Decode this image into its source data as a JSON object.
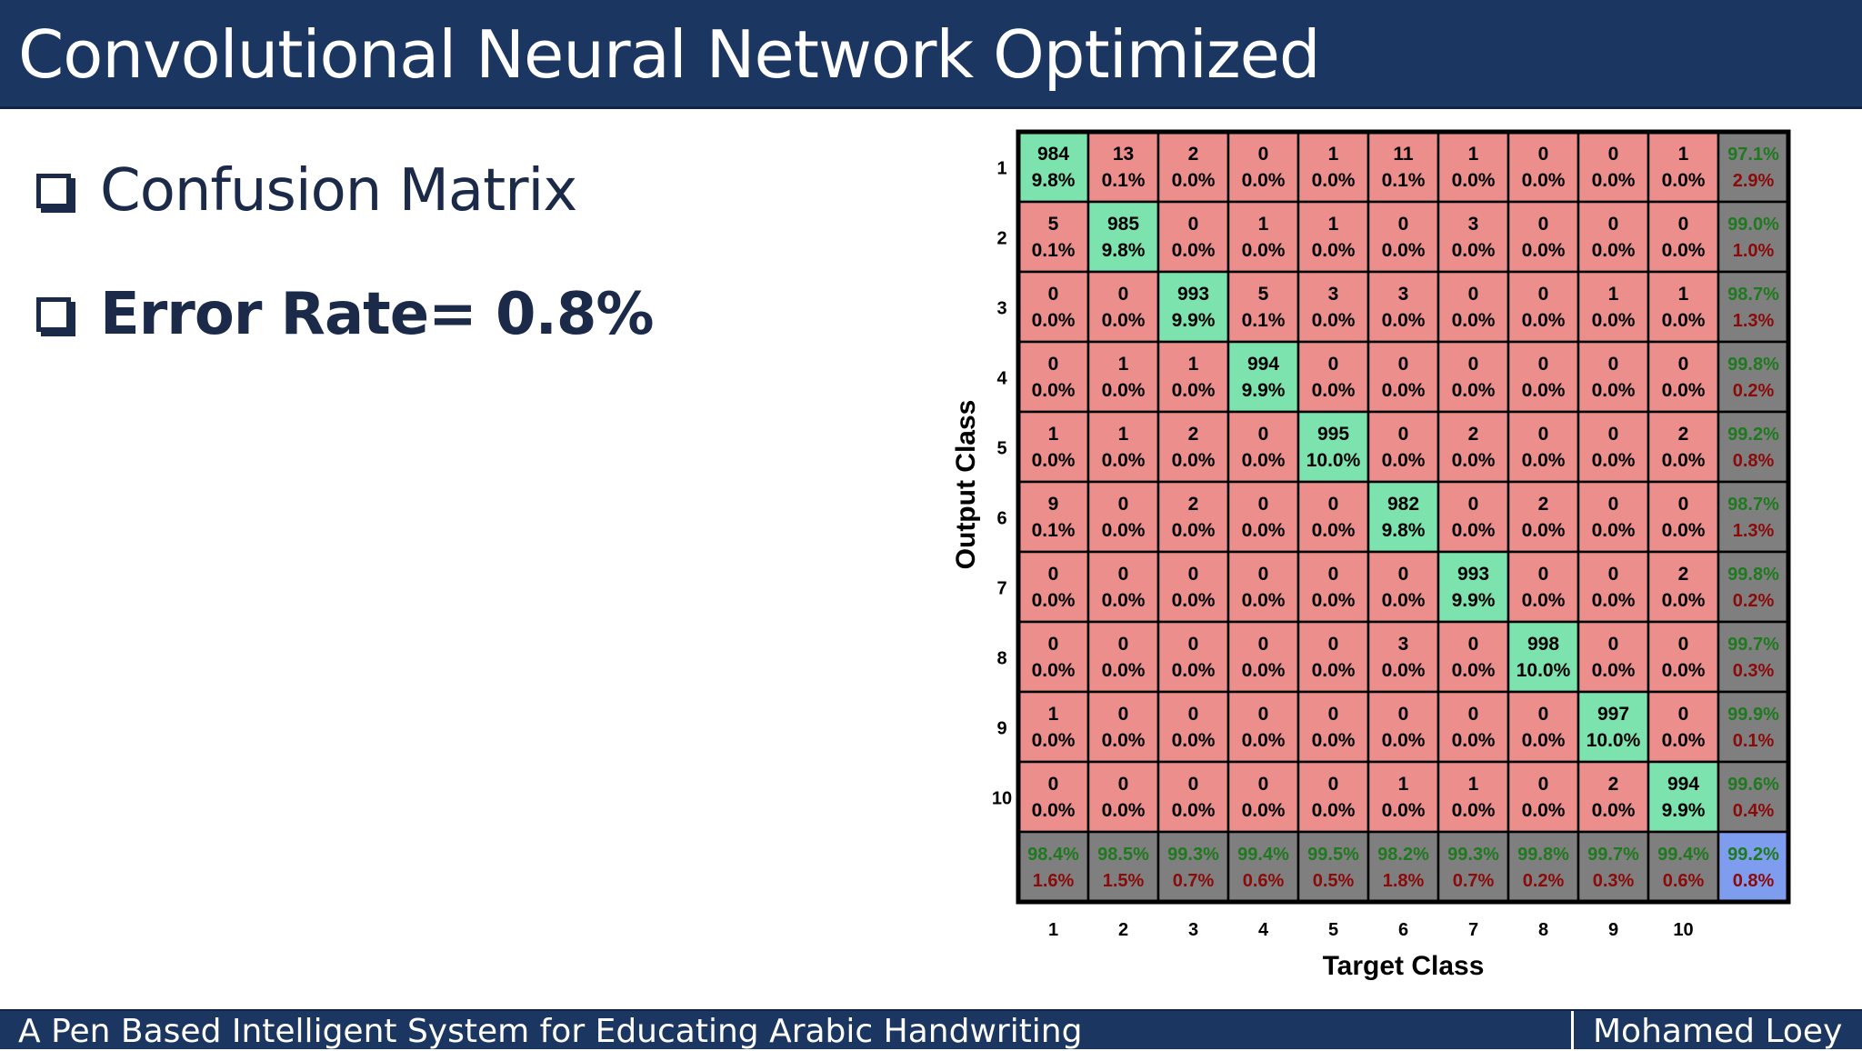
{
  "header": {
    "title": "Convolutional Neural Network Optimized"
  },
  "bullets": [
    {
      "text": "Confusion Matrix"
    },
    {
      "text": "Error Rate= 0.8%"
    }
  ],
  "footer": {
    "left": "A Pen Based Intelligent System for Educating Arabic Handwriting",
    "right": "Mohamed Loey"
  },
  "colors": {
    "header_bg": "#1b3660",
    "correct_cell": "#7de3ae",
    "wrong_cell": "#ec8f8c",
    "summary_cell": "#7f7f7f",
    "overall_cell": "#7f9dee",
    "accuracy_text": "#1f7a1f",
    "error_text": "#8b0a0a"
  },
  "chart_data": {
    "type": "heatmap",
    "xlabel": "Target Class",
    "ylabel": "Output Class",
    "x_tick_labels": [
      "1",
      "2",
      "3",
      "4",
      "5",
      "6",
      "7",
      "8",
      "9",
      "10"
    ],
    "y_tick_labels": [
      "1",
      "2",
      "3",
      "4",
      "5",
      "6",
      "7",
      "8",
      "9",
      "10"
    ],
    "counts": [
      [
        984,
        13,
        2,
        0,
        1,
        11,
        1,
        0,
        0,
        1
      ],
      [
        5,
        985,
        0,
        1,
        1,
        0,
        3,
        0,
        0,
        0
      ],
      [
        0,
        0,
        993,
        5,
        3,
        3,
        0,
        0,
        1,
        1
      ],
      [
        0,
        1,
        1,
        994,
        0,
        0,
        0,
        0,
        0,
        0
      ],
      [
        1,
        1,
        2,
        0,
        995,
        0,
        2,
        0,
        0,
        2
      ],
      [
        9,
        0,
        2,
        0,
        0,
        982,
        0,
        2,
        0,
        0
      ],
      [
        0,
        0,
        0,
        0,
        0,
        0,
        993,
        0,
        0,
        2
      ],
      [
        0,
        0,
        0,
        0,
        0,
        3,
        0,
        998,
        0,
        0
      ],
      [
        1,
        0,
        0,
        0,
        0,
        0,
        0,
        0,
        997,
        0
      ],
      [
        0,
        0,
        0,
        0,
        0,
        1,
        1,
        0,
        2,
        994
      ]
    ],
    "percents": [
      [
        "9.8%",
        "0.1%",
        "0.0%",
        "0.0%",
        "0.0%",
        "0.1%",
        "0.0%",
        "0.0%",
        "0.0%",
        "0.0%"
      ],
      [
        "0.1%",
        "9.8%",
        "0.0%",
        "0.0%",
        "0.0%",
        "0.0%",
        "0.0%",
        "0.0%",
        "0.0%",
        "0.0%"
      ],
      [
        "0.0%",
        "0.0%",
        "9.9%",
        "0.1%",
        "0.0%",
        "0.0%",
        "0.0%",
        "0.0%",
        "0.0%",
        "0.0%"
      ],
      [
        "0.0%",
        "0.0%",
        "0.0%",
        "9.9%",
        "0.0%",
        "0.0%",
        "0.0%",
        "0.0%",
        "0.0%",
        "0.0%"
      ],
      [
        "0.0%",
        "0.0%",
        "0.0%",
        "0.0%",
        "10.0%",
        "0.0%",
        "0.0%",
        "0.0%",
        "0.0%",
        "0.0%"
      ],
      [
        "0.1%",
        "0.0%",
        "0.0%",
        "0.0%",
        "0.0%",
        "9.8%",
        "0.0%",
        "0.0%",
        "0.0%",
        "0.0%"
      ],
      [
        "0.0%",
        "0.0%",
        "0.0%",
        "0.0%",
        "0.0%",
        "0.0%",
        "9.9%",
        "0.0%",
        "0.0%",
        "0.0%"
      ],
      [
        "0.0%",
        "0.0%",
        "0.0%",
        "0.0%",
        "0.0%",
        "0.0%",
        "0.0%",
        "10.0%",
        "0.0%",
        "0.0%"
      ],
      [
        "0.0%",
        "0.0%",
        "0.0%",
        "0.0%",
        "0.0%",
        "0.0%",
        "0.0%",
        "0.0%",
        "10.0%",
        "0.0%"
      ],
      [
        "0.0%",
        "0.0%",
        "0.0%",
        "0.0%",
        "0.0%",
        "0.0%",
        "0.0%",
        "0.0%",
        "0.0%",
        "9.9%"
      ]
    ],
    "row_summary": [
      [
        "97.1%",
        "2.9%"
      ],
      [
        "99.0%",
        "1.0%"
      ],
      [
        "98.7%",
        "1.3%"
      ],
      [
        "99.8%",
        "0.2%"
      ],
      [
        "99.2%",
        "0.8%"
      ],
      [
        "98.7%",
        "1.3%"
      ],
      [
        "99.8%",
        "0.2%"
      ],
      [
        "99.7%",
        "0.3%"
      ],
      [
        "99.9%",
        "0.1%"
      ],
      [
        "99.6%",
        "0.4%"
      ]
    ],
    "col_summary": [
      [
        "98.4%",
        "1.6%"
      ],
      [
        "98.5%",
        "1.5%"
      ],
      [
        "99.3%",
        "0.7%"
      ],
      [
        "99.4%",
        "0.6%"
      ],
      [
        "99.5%",
        "0.5%"
      ],
      [
        "98.2%",
        "1.8%"
      ],
      [
        "99.3%",
        "0.7%"
      ],
      [
        "99.8%",
        "0.2%"
      ],
      [
        "99.7%",
        "0.3%"
      ],
      [
        "99.4%",
        "0.6%"
      ]
    ],
    "overall": [
      "99.2%",
      "0.8%"
    ]
  }
}
